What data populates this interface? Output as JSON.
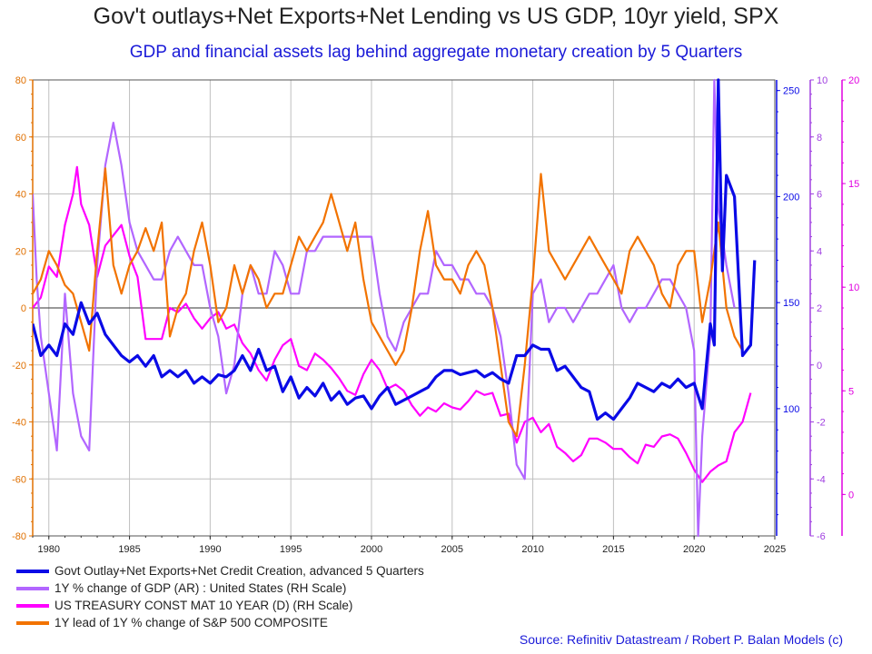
{
  "title": "Gov't outlays+Net Exports+Net Lending vs US GDP, 10yr yield, SPX",
  "subtitle": "GDP and financial assets lag behind aggregate monetary creation by 5 Quarters",
  "source": "Source: Refinitiv Datastream / Robert P. Balan Models (c)",
  "colors": {
    "govt": "#0a0ae6",
    "gdp": "#b266ff",
    "treasury": "#ff00ff",
    "spx": "#f27300",
    "grid": "#bfbfbf",
    "bg": "#ffffff"
  },
  "chart_data": {
    "type": "line",
    "x_ticks": [
      "1980",
      "1985",
      "1990",
      "1995",
      "2000",
      "2005",
      "2010",
      "2015",
      "2020",
      "2025"
    ],
    "xlim": [
      1979,
      2025
    ],
    "axes": {
      "left": {
        "ylim": [
          -80,
          80
        ],
        "ticks": [
          "80",
          "60",
          "40",
          "20",
          "0",
          "-20",
          "-40",
          "-60",
          "-80"
        ],
        "color": "#e07000"
      },
      "right_govt": {
        "ylim": [
          40,
          255
        ],
        "ticks": [
          "250",
          "200",
          "150",
          "100"
        ],
        "color": "#0a0ae6"
      },
      "right_gdp": {
        "ylim": [
          -6,
          10
        ],
        "ticks": [
          "10",
          "8",
          "6",
          "4",
          "2",
          "0",
          "-2",
          "-4",
          "-6"
        ],
        "color": "#a040e0"
      },
      "right_treasury": {
        "ylim": [
          -2,
          20
        ],
        "ticks": [
          "20",
          "15",
          "10",
          "5",
          "0"
        ],
        "color": "#e000e0"
      }
    },
    "series": [
      {
        "name": "Govt Outlay+Net Exports+Net Credit Creation, advanced 5 Quarters",
        "axis": "right_govt",
        "x": [
          1979.0,
          1979.5,
          1980.0,
          1980.5,
          1981.0,
          1981.5,
          1982.0,
          1982.5,
          1983.0,
          1983.5,
          1984.0,
          1984.5,
          1985.0,
          1985.5,
          1986.0,
          1986.5,
          1987.0,
          1987.5,
          1988.0,
          1988.5,
          1989.0,
          1989.5,
          1990.0,
          1990.5,
          1991.0,
          1991.5,
          1992.0,
          1992.5,
          1993.0,
          1993.5,
          1994.0,
          1994.5,
          1995.0,
          1995.5,
          1996.0,
          1996.5,
          1997.0,
          1997.5,
          1998.0,
          1998.5,
          1999.0,
          1999.5,
          2000.0,
          2000.5,
          2001.0,
          2001.5,
          2002.0,
          2002.5,
          2003.0,
          2003.5,
          2004.0,
          2004.5,
          2005.0,
          2005.5,
          2006.0,
          2006.5,
          2007.0,
          2007.5,
          2008.0,
          2008.5,
          2009.0,
          2009.5,
          2010.0,
          2010.5,
          2011.0,
          2011.5,
          2012.0,
          2012.5,
          2013.0,
          2013.5,
          2014.0,
          2014.5,
          2015.0,
          2015.5,
          2016.0,
          2016.5,
          2017.0,
          2017.5,
          2018.0,
          2018.5,
          2019.0,
          2019.5,
          2020.0,
          2020.5,
          2021.0,
          2021.25,
          2021.5,
          2021.75,
          2022.0,
          2022.5,
          2023.0,
          2023.5,
          2023.75
        ],
        "y": [
          140,
          125,
          130,
          125,
          140,
          135,
          150,
          140,
          145,
          135,
          130,
          125,
          122,
          125,
          120,
          125,
          115,
          118,
          115,
          118,
          112,
          115,
          112,
          116,
          115,
          118,
          125,
          118,
          128,
          118,
          120,
          108,
          115,
          105,
          110,
          106,
          112,
          104,
          108,
          102,
          105,
          106,
          100,
          106,
          110,
          102,
          104,
          106,
          108,
          110,
          115,
          118,
          118,
          116,
          117,
          118,
          115,
          117,
          114,
          112,
          125,
          125,
          130,
          128,
          128,
          118,
          120,
          115,
          110,
          108,
          95,
          98,
          95,
          100,
          105,
          112,
          110,
          108,
          112,
          110,
          114,
          110,
          112,
          100,
          140,
          130,
          255,
          165,
          210,
          200,
          125,
          130,
          170
        ]
      },
      {
        "name": "1Y % change of GDP (AR) : United States (RH Scale)",
        "axis": "right_gdp",
        "x": [
          1979.0,
          1979.25,
          1979.5,
          1980.0,
          1980.5,
          1981.0,
          1981.5,
          1982.0,
          1982.5,
          1983.0,
          1983.5,
          1984.0,
          1984.5,
          1985.0,
          1985.5,
          1986.0,
          1986.5,
          1987.0,
          1987.5,
          1988.0,
          1988.5,
          1989.0,
          1989.5,
          1990.0,
          1990.5,
          1991.0,
          1991.5,
          1992.0,
          1992.5,
          1993.0,
          1993.5,
          1994.0,
          1994.5,
          1995.0,
          1995.5,
          1996.0,
          1996.5,
          1997.0,
          1997.5,
          1998.0,
          1998.5,
          1999.0,
          1999.5,
          2000.0,
          2000.5,
          2001.0,
          2001.5,
          2002.0,
          2002.5,
          2003.0,
          2003.5,
          2004.0,
          2004.5,
          2005.0,
          2005.5,
          2006.0,
          2006.5,
          2007.0,
          2007.5,
          2008.0,
          2008.5,
          2009.0,
          2009.5,
          2010.0,
          2010.5,
          2011.0,
          2011.5,
          2012.0,
          2012.5,
          2013.0,
          2013.5,
          2014.0,
          2014.5,
          2015.0,
          2015.5,
          2016.0,
          2016.5,
          2017.0,
          2017.5,
          2018.0,
          2018.5,
          2019.0,
          2019.5,
          2020.0,
          2020.25,
          2020.5,
          2021.0,
          2021.25,
          2021.5,
          2021.75,
          2022.0,
          2022.5
        ],
        "y": [
          6.0,
          3.0,
          1.0,
          -1.0,
          -3.0,
          2.5,
          -1.0,
          -2.5,
          -3.0,
          3.5,
          7.0,
          8.5,
          7.0,
          5.0,
          4.0,
          3.5,
          3.0,
          3.0,
          4.0,
          4.5,
          4.0,
          3.5,
          3.5,
          2.0,
          1.0,
          -1.0,
          0.0,
          2.5,
          3.5,
          2.5,
          2.5,
          4.0,
          3.5,
          2.5,
          2.5,
          4.0,
          4.0,
          4.5,
          4.5,
          4.5,
          4.5,
          4.5,
          4.5,
          4.5,
          2.5,
          1.0,
          0.5,
          1.5,
          2.0,
          2.5,
          2.5,
          4.0,
          3.5,
          3.5,
          3.0,
          3.0,
          2.5,
          2.5,
          2.0,
          1.0,
          -1.0,
          -3.5,
          -4.0,
          2.5,
          3.0,
          1.5,
          2.0,
          2.0,
          1.5,
          2.0,
          2.5,
          2.5,
          3.0,
          3.5,
          2.0,
          1.5,
          2.0,
          2.0,
          2.5,
          3.0,
          3.0,
          2.5,
          2.0,
          0.5,
          -6.0,
          -2.5,
          1.0,
          10.0,
          5.5,
          4.5,
          3.5,
          2.0
        ]
      },
      {
        "name": "US TREASURY CONST MAT 10 YEAR (D) (RH Scale)",
        "axis": "right_treasury",
        "x": [
          1979.0,
          1979.5,
          1980.0,
          1980.5,
          1981.0,
          1981.5,
          1981.75,
          1982.0,
          1982.5,
          1983.0,
          1983.5,
          1984.0,
          1984.5,
          1985.0,
          1985.5,
          1986.0,
          1986.5,
          1987.0,
          1987.5,
          1988.0,
          1988.5,
          1989.0,
          1989.5,
          1990.0,
          1990.5,
          1991.0,
          1991.5,
          1992.0,
          1992.5,
          1993.0,
          1993.5,
          1994.0,
          1994.5,
          1995.0,
          1995.5,
          1996.0,
          1996.5,
          1997.0,
          1997.5,
          1998.0,
          1998.5,
          1999.0,
          1999.5,
          2000.0,
          2000.5,
          2001.0,
          2001.5,
          2002.0,
          2002.5,
          2003.0,
          2003.5,
          2004.0,
          2004.5,
          2005.0,
          2005.5,
          2006.0,
          2006.5,
          2007.0,
          2007.5,
          2008.0,
          2008.5,
          2009.0,
          2009.5,
          2010.0,
          2010.5,
          2011.0,
          2011.5,
          2012.0,
          2012.5,
          2013.0,
          2013.5,
          2014.0,
          2014.5,
          2015.0,
          2015.5,
          2016.0,
          2016.5,
          2017.0,
          2017.5,
          2018.0,
          2018.5,
          2019.0,
          2019.5,
          2020.0,
          2020.5,
          2021.0,
          2021.5,
          2022.0,
          2022.5,
          2023.0,
          2023.5
        ],
        "y": [
          9.0,
          9.5,
          11.0,
          10.5,
          13.0,
          14.5,
          15.8,
          14.0,
          13.0,
          10.5,
          12.0,
          12.5,
          13.0,
          11.5,
          10.5,
          7.5,
          7.5,
          7.5,
          9.0,
          8.8,
          9.2,
          8.5,
          8.0,
          8.5,
          8.8,
          8.0,
          8.2,
          7.3,
          6.8,
          6.0,
          5.5,
          6.5,
          7.2,
          7.5,
          6.2,
          6.0,
          6.8,
          6.5,
          6.1,
          5.6,
          5.0,
          4.8,
          5.8,
          6.5,
          6.0,
          5.1,
          5.3,
          5.0,
          4.3,
          3.8,
          4.2,
          4.0,
          4.4,
          4.2,
          4.1,
          4.5,
          5.0,
          4.8,
          4.9,
          3.8,
          3.9,
          2.5,
          3.5,
          3.7,
          3.0,
          3.4,
          2.3,
          2.0,
          1.6,
          1.9,
          2.7,
          2.7,
          2.5,
          2.2,
          2.2,
          1.8,
          1.5,
          2.4,
          2.3,
          2.8,
          2.9,
          2.7,
          2.0,
          1.2,
          0.6,
          1.1,
          1.4,
          1.6,
          3.0,
          3.5,
          4.9
        ]
      },
      {
        "name": "1Y lead of 1Y % change of S&P 500 COMPOSITE",
        "axis": "left",
        "x": [
          1979.0,
          1979.5,
          1980.0,
          1980.5,
          1981.0,
          1981.5,
          1982.0,
          1982.5,
          1983.0,
          1983.5,
          1984.0,
          1984.5,
          1985.0,
          1985.5,
          1986.0,
          1986.5,
          1987.0,
          1987.5,
          1988.0,
          1988.5,
          1989.0,
          1989.5,
          1990.0,
          1990.5,
          1991.0,
          1991.5,
          1992.0,
          1992.5,
          1993.0,
          1993.5,
          1994.0,
          1994.5,
          1995.0,
          1995.5,
          1996.0,
          1996.5,
          1997.0,
          1997.5,
          1998.0,
          1998.5,
          1999.0,
          1999.5,
          2000.0,
          2000.5,
          2001.0,
          2001.5,
          2002.0,
          2002.5,
          2003.0,
          2003.5,
          2004.0,
          2004.5,
          2005.0,
          2005.5,
          2006.0,
          2006.5,
          2007.0,
          2007.5,
          2008.0,
          2008.5,
          2009.0,
          2009.5,
          2010.0,
          2010.5,
          2011.0,
          2011.5,
          2012.0,
          2012.5,
          2013.0,
          2013.5,
          2014.0,
          2014.5,
          2015.0,
          2015.5,
          2016.0,
          2016.5,
          2017.0,
          2017.5,
          2018.0,
          2018.5,
          2019.0,
          2019.5,
          2020.0,
          2020.5,
          2021.0,
          2021.5,
          2022.0,
          2022.5,
          2023.0
        ],
        "y": [
          5,
          10,
          20,
          15,
          8,
          5,
          -5,
          -15,
          20,
          49,
          15,
          5,
          15,
          20,
          28,
          20,
          30,
          -10,
          0,
          5,
          20,
          30,
          15,
          -5,
          0,
          15,
          5,
          15,
          10,
          0,
          5,
          5,
          15,
          25,
          20,
          25,
          30,
          40,
          30,
          20,
          30,
          10,
          -5,
          -10,
          -15,
          -20,
          -15,
          0,
          20,
          34,
          15,
          10,
          10,
          5,
          15,
          20,
          15,
          0,
          -20,
          -40,
          -45,
          -20,
          10,
          47,
          20,
          15,
          10,
          15,
          20,
          25,
          20,
          15,
          10,
          5,
          20,
          25,
          20,
          15,
          5,
          0,
          15,
          20,
          20,
          -5,
          10,
          30,
          0,
          -10,
          -15
        ]
      }
    ]
  },
  "legend": [
    {
      "label": "Govt Outlay+Net Exports+Net Credit Creation, advanced 5 Quarters"
    },
    {
      "label": "1Y % change of GDP (AR) : United States (RH Scale)"
    },
    {
      "label": "US TREASURY CONST MAT 10 YEAR (D) (RH Scale)"
    },
    {
      "label": "1Y lead of 1Y % change of S&P 500 COMPOSITE"
    }
  ]
}
